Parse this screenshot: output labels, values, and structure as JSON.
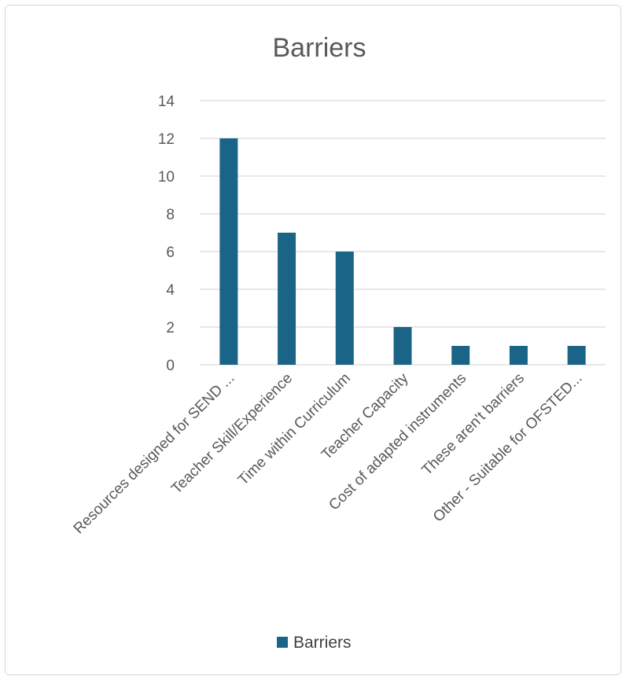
{
  "chart_data": {
    "type": "bar",
    "title": "Barriers",
    "categories": [
      "Resources designed for SEND ...",
      "Teacher Skill/Experience",
      "Time within Curriculum",
      "Teacher Capacity",
      "Cost of adapted instruments",
      "These aren't barriers",
      "Other - Suitable for OFSTED..."
    ],
    "series": [
      {
        "name": "Barriers",
        "values": [
          12,
          7,
          6,
          2,
          1,
          1,
          1
        ]
      }
    ],
    "ylim": [
      0,
      14
    ],
    "yticks": [
      0,
      2,
      4,
      6,
      8,
      10,
      12,
      14
    ],
    "grid": true,
    "legend_position": "bottom",
    "bar_color": "#1a6487"
  }
}
